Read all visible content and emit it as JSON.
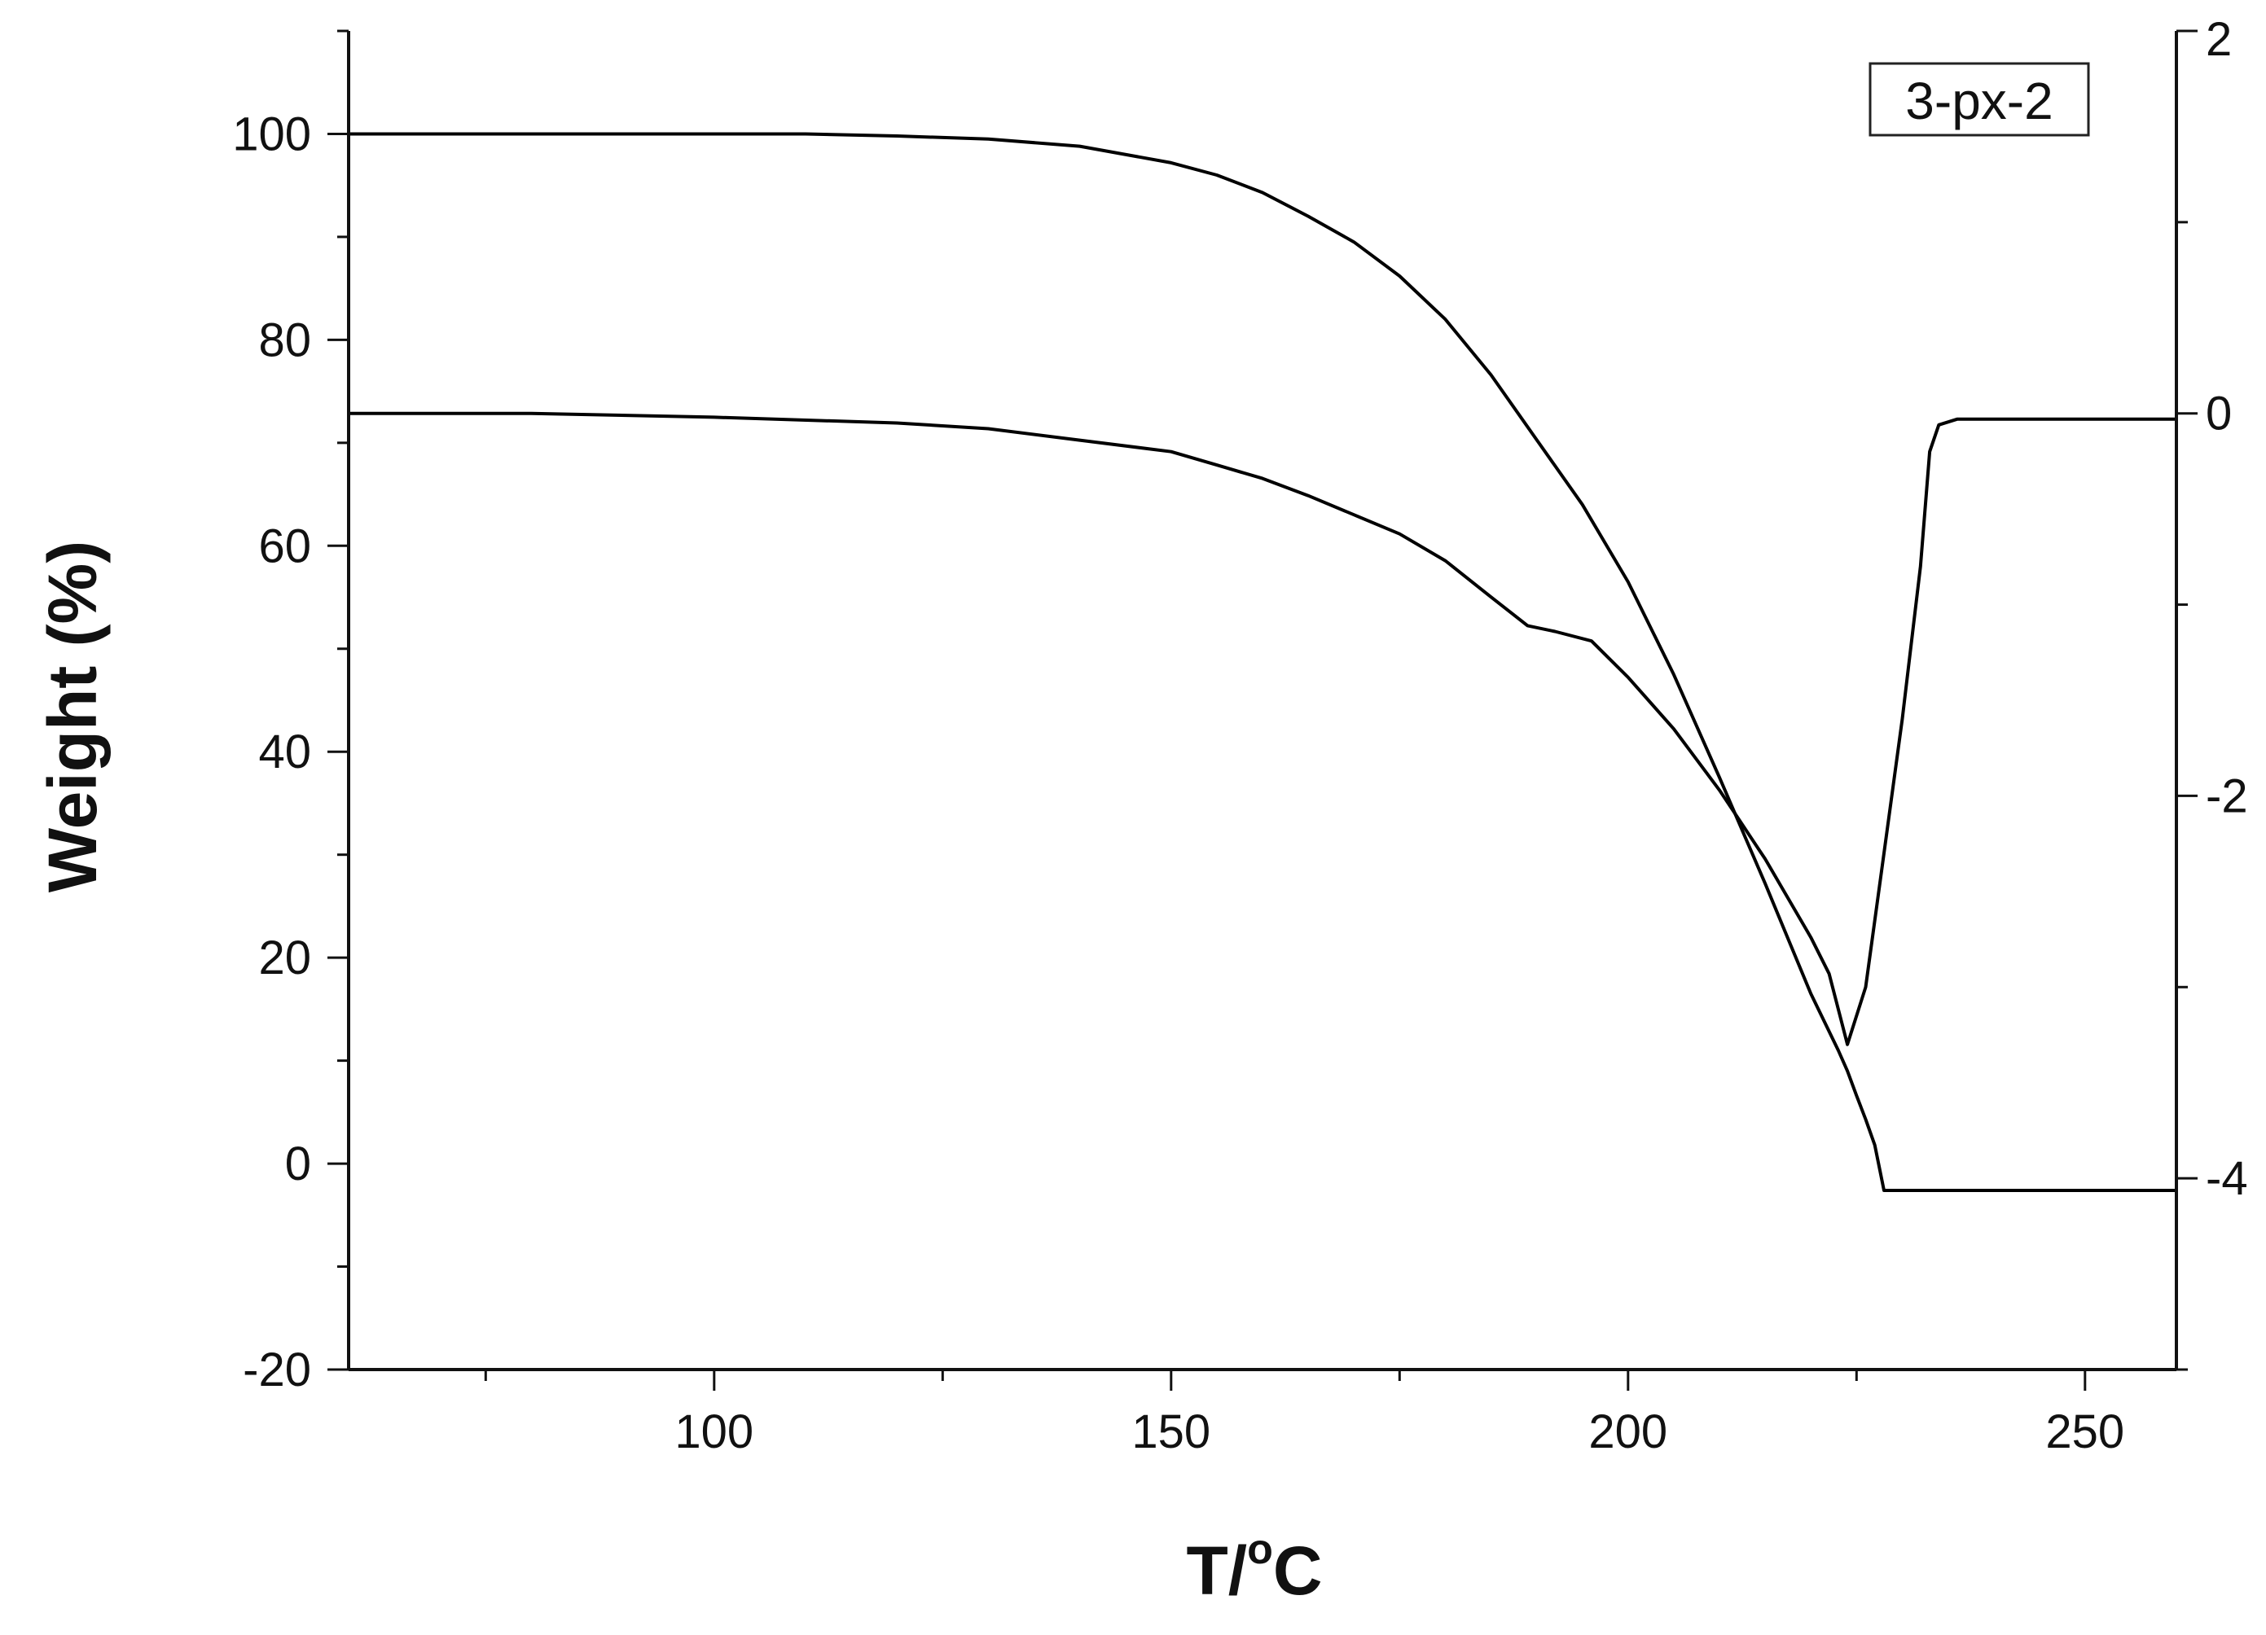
{
  "chart_data": {
    "type": "line",
    "title": "",
    "xlabel": "T/°C",
    "xlabel_parts": {
      "before": "T/",
      "sup": "o",
      "after": "C"
    },
    "ylabel": "Weight (%)",
    "y2label": "",
    "xlim": [
      60,
      260
    ],
    "ylim": [
      -20,
      110
    ],
    "y2lim": [
      -5,
      2
    ],
    "x_ticks": [
      100,
      150,
      200,
      250
    ],
    "x_tick_labels": [
      "100",
      "150",
      "200",
      "250"
    ],
    "y_ticks": [
      -20,
      0,
      20,
      40,
      60,
      80,
      100
    ],
    "y_tick_labels": [
      "-20",
      "0",
      "20",
      "40",
      "60",
      "80",
      "100"
    ],
    "y2_ticks": [
      -4,
      -2,
      0,
      2
    ],
    "y2_tick_labels": [
      "-4",
      "-2",
      "0",
      "2"
    ],
    "grid": false,
    "legend": {
      "position": "top-right",
      "label": "3-px-2"
    },
    "series": [
      {
        "axis": "left",
        "color": "#000000",
        "x": [
          60,
          80,
          100,
          110,
          120,
          130,
          140,
          150,
          155,
          160,
          165,
          170,
          175,
          180,
          185,
          190,
          195,
          200,
          205,
          210,
          215,
          220,
          223,
          224,
          225,
          226,
          227,
          228,
          230,
          240,
          250,
          260
        ],
        "y": [
          100,
          100,
          100,
          100,
          99.8,
          99.5,
          98.8,
          97.2,
          96,
          94.3,
          92,
          89.5,
          86.2,
          82,
          76.6,
          70.3,
          64,
          56.5,
          47.5,
          37.5,
          27.2,
          16.5,
          11,
          9,
          6.6,
          4.3,
          1.8,
          -2.6,
          -2.6,
          -2.6,
          -2.6,
          -2.6
        ]
      },
      {
        "axis": "right",
        "color": "#000000",
        "x": [
          60,
          80,
          100,
          120,
          130,
          140,
          150,
          155,
          160,
          165,
          170,
          175,
          180,
          185,
          189,
          192,
          196,
          200,
          205,
          210,
          215,
          220,
          222,
          224,
          226,
          228,
          230,
          232,
          233,
          234,
          236,
          240,
          250,
          260
        ],
        "y": [
          0,
          0,
          -0.02,
          -0.05,
          -0.08,
          -0.14,
          -0.2,
          -0.27,
          -0.34,
          -0.43,
          -0.53,
          -0.63,
          -0.77,
          -0.96,
          -1.11,
          -1.14,
          -1.19,
          -1.38,
          -1.65,
          -1.97,
          -2.33,
          -2.74,
          -2.93,
          -3.3,
          -3.0,
          -2.3,
          -1.6,
          -0.8,
          -0.2,
          -0.06,
          -0.03,
          -0.03,
          -0.03,
          -0.03
        ]
      }
    ]
  }
}
